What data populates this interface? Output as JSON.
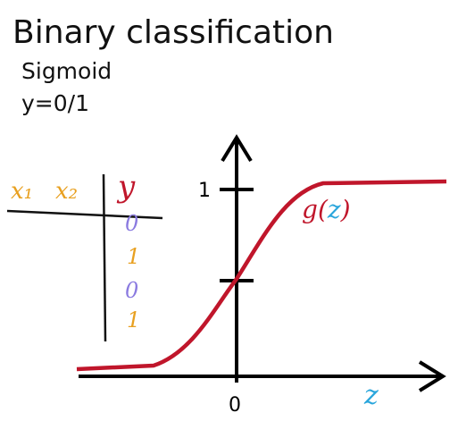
{
  "header": {
    "title": "Binary classification",
    "lines": [
      "Sigmoid",
      "y=0/1"
    ]
  },
  "table": {
    "columns": [
      "x₁",
      "x₂",
      "y"
    ],
    "rows": [
      "0",
      "1",
      "0",
      "1"
    ]
  },
  "plot": {
    "y_tick": "1",
    "x_tick": "0",
    "x_label": "z",
    "curve_label": [
      "g",
      "(",
      "z",
      ")"
    ]
  }
}
